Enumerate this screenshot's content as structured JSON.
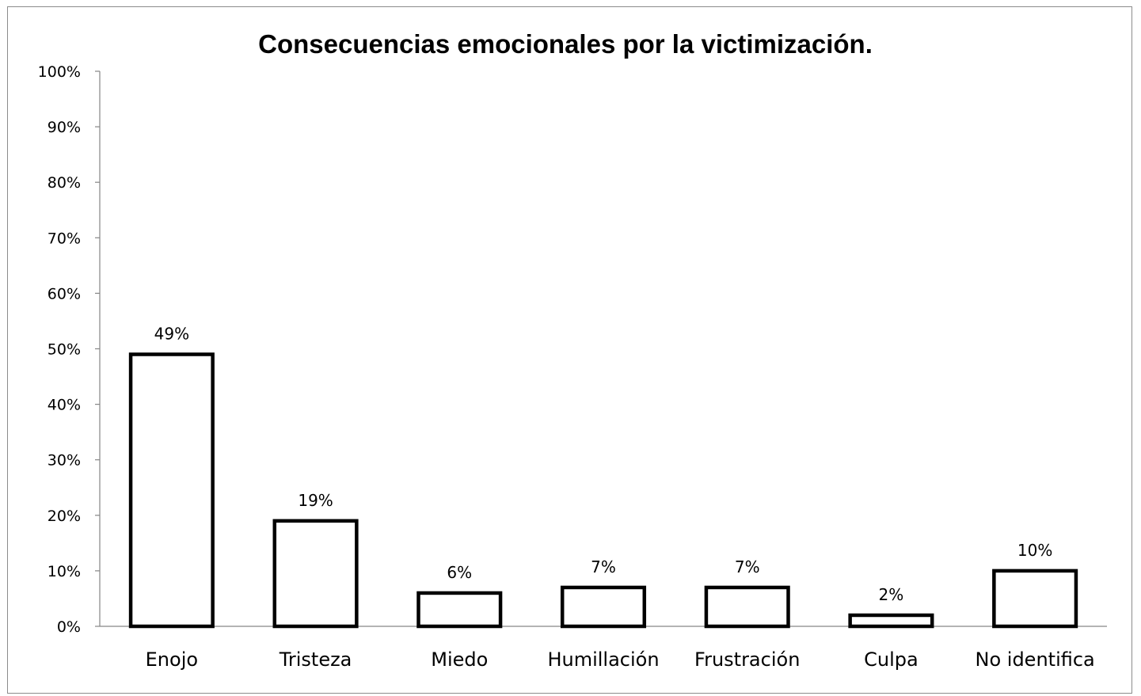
{
  "chart_data": {
    "type": "bar",
    "title": "Consecuencias emocionales por la victimización.",
    "categories": [
      "Enojo",
      "Tristeza",
      "Miedo",
      "Humillación",
      "Frustración",
      "Culpa",
      "No identifica"
    ],
    "values": [
      49,
      19,
      6,
      7,
      7,
      2,
      10
    ],
    "data_labels": [
      "49%",
      "19%",
      "6%",
      "7%",
      "7%",
      "2%",
      "10%"
    ],
    "y_ticks": [
      "0%",
      "10%",
      "20%",
      "30%",
      "40%",
      "50%",
      "60%",
      "70%",
      "80%",
      "90%",
      "100%"
    ],
    "ylim": [
      0,
      100
    ],
    "xlabel": "",
    "ylabel": "",
    "grid": false,
    "legend": "none",
    "colors": {
      "bar_fill": "#ffffff",
      "bar_stroke": "#000000",
      "axis": "#868686",
      "frame": "#8c8c8c"
    }
  }
}
